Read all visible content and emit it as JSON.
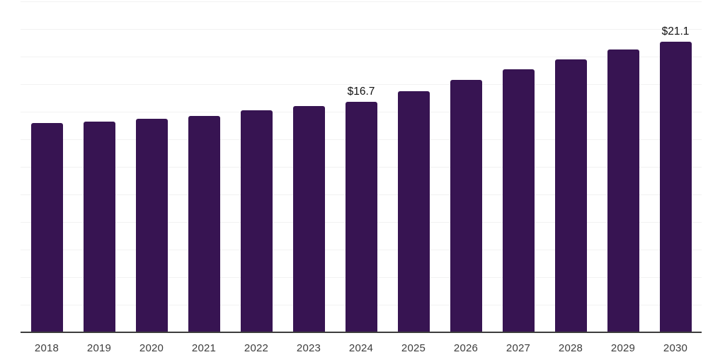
{
  "chart_data": {
    "type": "bar",
    "title": "",
    "xlabel": "",
    "ylabel": "",
    "categories": [
      "2018",
      "2019",
      "2020",
      "2021",
      "2022",
      "2023",
      "2024",
      "2025",
      "2026",
      "2027",
      "2028",
      "2029",
      "2030"
    ],
    "values": [
      15.2,
      15.3,
      15.5,
      15.7,
      16.1,
      16.4,
      16.7,
      17.5,
      18.3,
      19.1,
      19.8,
      20.5,
      21.1
    ],
    "data_labels": {
      "2024": "$16.7",
      "2030": "$21.1"
    },
    "ylim": [
      0,
      24
    ],
    "gridline_step": 2,
    "grid": true,
    "legend": "none",
    "colors": {
      "bar": "#371452",
      "gridline": "#f2f2f2",
      "axis_line": "#3d3d3d",
      "tick_label": "#3d3d3d",
      "data_label": "#111111",
      "background": "#ffffff"
    }
  }
}
